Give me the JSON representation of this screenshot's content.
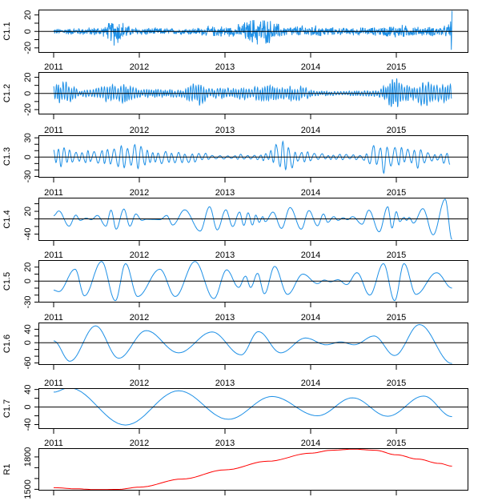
{
  "chart_data": {
    "type": "line",
    "title": "",
    "xlabel": "",
    "x_ticks": [
      2011,
      2012,
      2013,
      2014,
      2015
    ],
    "x_tick_labels": [
      "2011",
      "2012",
      "2013",
      "2014",
      "2015"
    ],
    "xlim": [
      2010.8,
      2015.85
    ],
    "x_range_of_data": [
      2011.0,
      2015.65
    ],
    "colors": {
      "imf": "#1e90e6",
      "residue": "#ff0000",
      "zero_line": "#000000"
    },
    "panels": [
      {
        "name": "C1.1",
        "ylim": [
          -26,
          26.5
        ],
        "ticks": [
          -20,
          -10,
          0,
          10,
          20
        ],
        "tick_labels": [
          "-20",
          "0",
          "20"
        ],
        "labeled_ticks": [
          -20,
          0,
          20
        ],
        "kind": "noise",
        "period": 0.008,
        "envelope": [
          [
            2011.0,
            4
          ],
          [
            2011.3,
            5
          ],
          [
            2011.6,
            7
          ],
          [
            2011.72,
            22
          ],
          [
            2011.9,
            6
          ],
          [
            2012.5,
            4
          ],
          [
            2012.95,
            8
          ],
          [
            2013.1,
            7
          ],
          [
            2013.35,
            20
          ],
          [
            2013.47,
            19
          ],
          [
            2013.7,
            7
          ],
          [
            2014.0,
            9
          ],
          [
            2014.3,
            5
          ],
          [
            2014.8,
            6
          ],
          [
            2015.0,
            10
          ],
          [
            2015.3,
            6
          ],
          [
            2015.6,
            8
          ],
          [
            2015.65,
            25
          ]
        ]
      },
      {
        "name": "C1.2",
        "ylim": [
          -26,
          26.5
        ],
        "ticks": [
          -20,
          -10,
          0,
          10,
          20
        ],
        "tick_labels": [
          "-20",
          "0",
          "20"
        ],
        "labeled_ticks": [
          -20,
          0,
          20
        ],
        "kind": "oscillation",
        "period": 0.03,
        "envelope": [
          [
            2011.0,
            9
          ],
          [
            2011.15,
            16
          ],
          [
            2011.3,
            3
          ],
          [
            2011.6,
            11
          ],
          [
            2011.8,
            12
          ],
          [
            2012.0,
            5
          ],
          [
            2012.5,
            5
          ],
          [
            2012.7,
            17
          ],
          [
            2012.8,
            6
          ],
          [
            2013.3,
            8
          ],
          [
            2013.5,
            10
          ],
          [
            2013.9,
            9
          ],
          [
            2014.05,
            3
          ],
          [
            2014.5,
            3
          ],
          [
            2014.8,
            5
          ],
          [
            2015.0,
            22
          ],
          [
            2015.2,
            8
          ],
          [
            2015.3,
            17
          ],
          [
            2015.5,
            13
          ],
          [
            2015.65,
            12
          ]
        ]
      },
      {
        "name": "C1.3",
        "ylim": [
          -32,
          34
        ],
        "ticks": [
          -30,
          -20,
          -10,
          0,
          10,
          20,
          30
        ],
        "tick_labels": [
          "-30",
          "0",
          "30"
        ],
        "labeled_ticks": [
          -30,
          0,
          30
        ],
        "kind": "oscillation",
        "period": 0.075,
        "envelope": [
          [
            2011.0,
            15
          ],
          [
            2011.15,
            15
          ],
          [
            2011.25,
            10
          ],
          [
            2011.5,
            12
          ],
          [
            2011.6,
            14
          ],
          [
            2011.9,
            20
          ],
          [
            2012.0,
            20
          ],
          [
            2012.2,
            10
          ],
          [
            2012.4,
            12
          ],
          [
            2012.7,
            7
          ],
          [
            2013.0,
            4
          ],
          [
            2013.5,
            6
          ],
          [
            2013.62,
            25
          ],
          [
            2013.7,
            30
          ],
          [
            2013.85,
            10
          ],
          [
            2014.2,
            5
          ],
          [
            2014.6,
            4
          ],
          [
            2014.8,
            25
          ],
          [
            2014.9,
            28
          ],
          [
            2015.1,
            15
          ],
          [
            2015.3,
            20
          ],
          [
            2015.45,
            5
          ],
          [
            2015.6,
            12
          ],
          [
            2015.65,
            28
          ]
        ]
      },
      {
        "name": "C1.4",
        "ylim": [
          -58,
          56
        ],
        "ticks": [
          -40,
          -20,
          0,
          20,
          40
        ],
        "tick_labels": [
          "-40",
          "20"
        ],
        "labeled_ticks": [
          -40,
          20
        ],
        "kind": "extrema",
        "points": [
          [
            2011.0,
            8.6
          ],
          [
            2011.06,
            21
          ],
          [
            2011.18,
            -19
          ],
          [
            2011.26,
            10
          ],
          [
            2011.31,
            -4
          ],
          [
            2011.38,
            2
          ],
          [
            2011.44,
            -2
          ],
          [
            2011.51,
            9
          ],
          [
            2011.61,
            -19
          ],
          [
            2011.67,
            23
          ],
          [
            2011.73,
            -27
          ],
          [
            2011.82,
            26
          ],
          [
            2011.89,
            -19
          ],
          [
            2011.96,
            13
          ],
          [
            2012.03,
            -4
          ],
          [
            2012.08,
            -1
          ],
          [
            2012.24,
            -2
          ],
          [
            2012.32,
            9
          ],
          [
            2012.39,
            -16
          ],
          [
            2012.53,
            24
          ],
          [
            2012.71,
            -32
          ],
          [
            2012.82,
            32
          ],
          [
            2012.91,
            -29
          ],
          [
            2013.01,
            24
          ],
          [
            2013.09,
            -20
          ],
          [
            2013.17,
            18
          ],
          [
            2013.22,
            -17
          ],
          [
            2013.27,
            16
          ],
          [
            2013.32,
            -16
          ],
          [
            2013.36,
            10
          ],
          [
            2013.4,
            -9
          ],
          [
            2013.44,
            6
          ],
          [
            2013.47,
            -7
          ],
          [
            2013.56,
            18
          ],
          [
            2013.66,
            -25
          ],
          [
            2013.76,
            30
          ],
          [
            2013.89,
            -27
          ],
          [
            2013.98,
            22
          ],
          [
            2014.08,
            -18
          ],
          [
            2014.15,
            13
          ],
          [
            2014.2,
            -9
          ],
          [
            2014.27,
            6
          ],
          [
            2014.32,
            -4
          ],
          [
            2014.38,
            3
          ],
          [
            2014.43,
            -2
          ],
          [
            2014.49,
            6
          ],
          [
            2014.6,
            -14
          ],
          [
            2014.68,
            23
          ],
          [
            2014.8,
            -34
          ],
          [
            2014.9,
            32
          ],
          [
            2014.95,
            -24
          ],
          [
            2015.0,
            19
          ],
          [
            2015.04,
            -7
          ],
          [
            2015.09,
            4
          ],
          [
            2015.12,
            -4
          ],
          [
            2015.15,
            4
          ],
          [
            2015.2,
            -11
          ],
          [
            2015.31,
            27
          ],
          [
            2015.43,
            -42
          ],
          [
            2015.57,
            52
          ],
          [
            2015.65,
            -54
          ]
        ]
      },
      {
        "name": "C1.5",
        "ylim": [
          -30.6,
          30
        ],
        "ticks": [
          -30,
          -20,
          -10,
          0,
          10,
          20
        ],
        "tick_labels": [
          "-30",
          "0",
          "20"
        ],
        "labeled_ticks": [
          -30,
          0,
          20
        ],
        "kind": "extrema",
        "points": [
          [
            2011.0,
            -13
          ],
          [
            2011.06,
            -15
          ],
          [
            2011.25,
            17
          ],
          [
            2011.36,
            -21
          ],
          [
            2011.56,
            28
          ],
          [
            2011.72,
            -28
          ],
          [
            2011.84,
            25
          ],
          [
            2011.98,
            -22
          ],
          [
            2012.24,
            17
          ],
          [
            2012.42,
            -22
          ],
          [
            2012.65,
            28
          ],
          [
            2012.87,
            -25
          ],
          [
            2013.02,
            16
          ],
          [
            2013.16,
            -9
          ],
          [
            2013.24,
            7
          ],
          [
            2013.3,
            -9
          ],
          [
            2013.38,
            11
          ],
          [
            2013.46,
            -18
          ],
          [
            2013.58,
            21
          ],
          [
            2013.73,
            -19
          ],
          [
            2013.91,
            10
          ],
          [
            2014.08,
            -3.5
          ],
          [
            2014.16,
            1.5
          ],
          [
            2014.23,
            -1
          ],
          [
            2014.32,
            2
          ],
          [
            2014.42,
            -5
          ],
          [
            2014.54,
            12
          ],
          [
            2014.69,
            -20
          ],
          [
            2014.85,
            25
          ],
          [
            2014.98,
            -28
          ],
          [
            2015.09,
            25
          ],
          [
            2015.23,
            -19
          ],
          [
            2015.47,
            12
          ],
          [
            2015.65,
            -10
          ]
        ]
      },
      {
        "name": "C1.6",
        "ylim": [
          -66,
          60
        ],
        "ticks": [
          -60,
          -40,
          -20,
          0,
          20,
          40
        ],
        "tick_labels": [
          "-60",
          "0",
          "40"
        ],
        "labeled_ticks": [
          -60,
          0,
          40
        ],
        "kind": "extrema",
        "points": [
          [
            2011.0,
            5.5
          ],
          [
            2011.19,
            -55
          ],
          [
            2011.49,
            50
          ],
          [
            2011.76,
            -46
          ],
          [
            2012.08,
            36
          ],
          [
            2012.46,
            -30
          ],
          [
            2012.85,
            32
          ],
          [
            2013.19,
            -36
          ],
          [
            2013.39,
            33
          ],
          [
            2013.65,
            -30
          ],
          [
            2013.94,
            14
          ],
          [
            2014.18,
            -6
          ],
          [
            2014.35,
            2.4
          ],
          [
            2014.51,
            -6
          ],
          [
            2014.74,
            20
          ],
          [
            2014.98,
            -38
          ],
          [
            2015.27,
            54
          ],
          [
            2015.65,
            -62
          ]
        ]
      },
      {
        "name": "C1.7",
        "ylim": [
          -50,
          43
        ],
        "ticks": [
          -40,
          -20,
          0,
          20,
          40
        ],
        "tick_labels": [
          "-40",
          "0",
          "40"
        ],
        "labeled_ticks": [
          -40,
          0,
          40
        ],
        "kind": "extrema",
        "points": [
          [
            2011.0,
            34
          ],
          [
            2011.18,
            44
          ],
          [
            2011.84,
            -41
          ],
          [
            2012.46,
            37
          ],
          [
            2013.04,
            -28
          ],
          [
            2013.55,
            24
          ],
          [
            2014.08,
            -20
          ],
          [
            2014.49,
            21
          ],
          [
            2014.9,
            -21
          ],
          [
            2015.32,
            25
          ],
          [
            2015.65,
            -22
          ]
        ]
      },
      {
        "name": "R1",
        "ylim": [
          1488,
          1881
        ],
        "ticks": [
          1500,
          1600,
          1700,
          1800
        ],
        "tick_labels": [
          "1500",
          "1800"
        ],
        "labeled_ticks": [
          1500,
          1800
        ],
        "kind": "smooth",
        "residue": true,
        "points": [
          [
            2011.0,
            1515
          ],
          [
            2011.25,
            1505
          ],
          [
            2011.5,
            1497
          ],
          [
            2011.75,
            1499
          ],
          [
            2012.0,
            1520
          ],
          [
            2012.5,
            1595
          ],
          [
            2013.0,
            1680
          ],
          [
            2013.5,
            1760
          ],
          [
            2014.0,
            1835
          ],
          [
            2014.25,
            1862
          ],
          [
            2014.5,
            1872
          ],
          [
            2014.75,
            1862
          ],
          [
            2015.0,
            1820
          ],
          [
            2015.25,
            1780
          ],
          [
            2015.5,
            1740
          ],
          [
            2015.65,
            1715
          ]
        ]
      }
    ]
  }
}
